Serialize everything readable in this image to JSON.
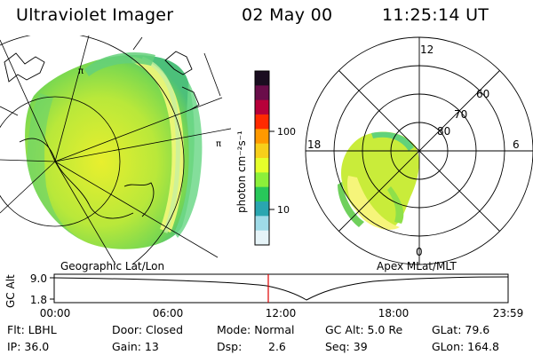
{
  "header": {
    "instrument": "Ultraviolet Imager",
    "date": "02 May 00",
    "time": "11:25:14 UT"
  },
  "colorbar": {
    "unit_label": "photon cm⁻²s⁻¹",
    "ticks": [
      "100",
      "10"
    ],
    "colors": [
      "#1a0d20",
      "#6a0d4a",
      "#b8003a",
      "#ff2a00",
      "#ff9900",
      "#f7cf1a",
      "#e6ff2a",
      "#8cf03a",
      "#28c85a",
      "#2aa6b0",
      "#9fdbe8",
      "#e6f4f8"
    ]
  },
  "geo_map": {
    "label": "Geographic Lat/Lon",
    "tick_glyph": "π"
  },
  "polar_map": {
    "label": "Apex MLat/MLT",
    "mlt_labels": [
      "12",
      "18",
      "6",
      "0"
    ],
    "mlat_labels": [
      "60",
      "70",
      "80"
    ]
  },
  "altitude_plot": {
    "axis_label": "GC Alt",
    "y_ticks": [
      "9.0",
      "1.8"
    ],
    "x_ticks": [
      "00:00",
      "06:00",
      "12:00",
      "18:00",
      "23:59"
    ],
    "marker_color": "#e00000"
  },
  "status": {
    "filter": "Flt: LBHL",
    "door": "Door: Closed",
    "mode": "Mode: Normal",
    "gc_alt": "GC Alt: 5.0 Re",
    "glat": "GLat: 79.6",
    "ip": "IP: 36.0",
    "gain": "Gain: 13",
    "dsp_label": "Dsp:",
    "dsp_value": "2.6",
    "seq": "Seq: 39",
    "glon": "GLon: 164.8"
  }
}
